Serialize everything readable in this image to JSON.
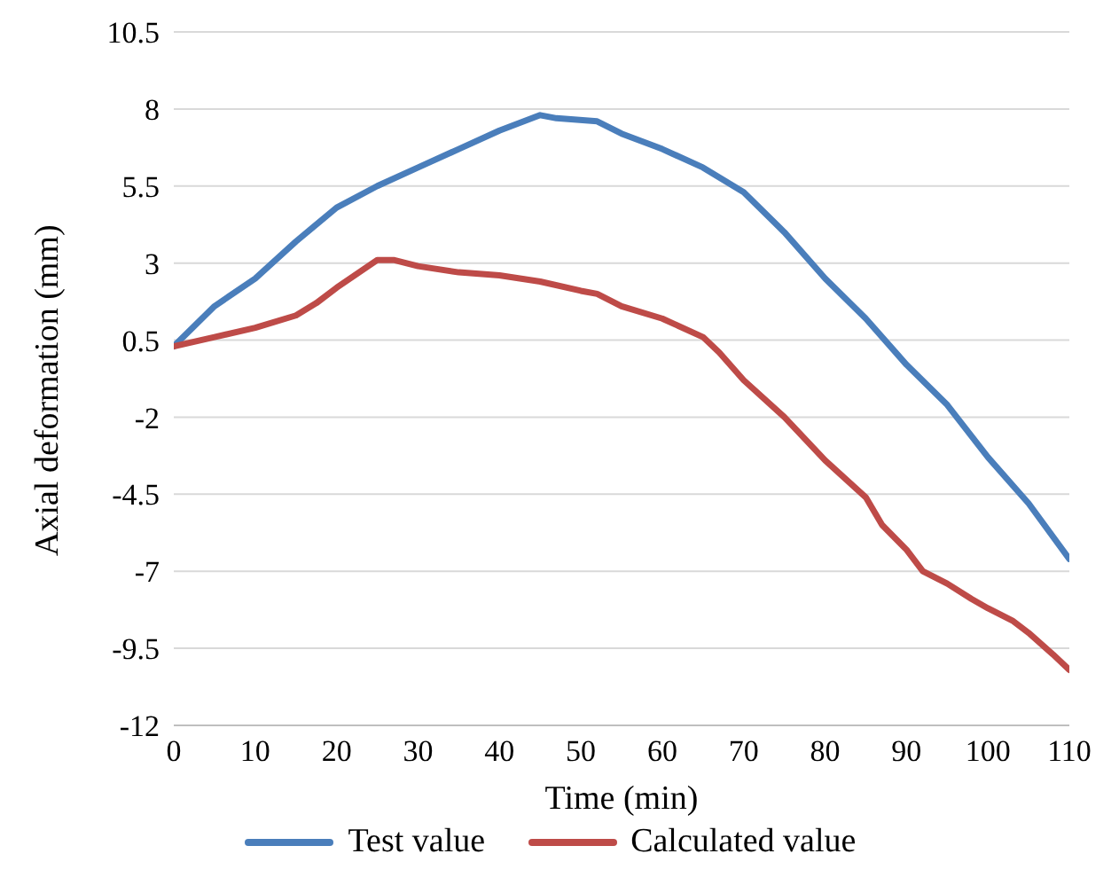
{
  "chart_data": {
    "type": "line",
    "xlabel": "Time (min)",
    "ylabel": "Axial deformation (mm)",
    "xlim": [
      0,
      110
    ],
    "xticks": [
      0,
      10,
      20,
      30,
      40,
      50,
      60,
      70,
      80,
      90,
      100,
      110
    ],
    "ylim": [
      -12,
      10.5
    ],
    "yticks": [
      -12,
      -9.5,
      -7,
      -4.5,
      -2,
      0.5,
      3,
      5.5,
      8,
      10.5
    ],
    "grid": "y",
    "legend": "bottom",
    "marker": "none",
    "line_style": "solid",
    "series": [
      {
        "name": "Test value",
        "color": "#4a7ebb",
        "x": [
          0,
          5,
          10,
          15,
          20,
          25,
          30,
          35,
          40,
          45,
          47,
          52,
          55,
          60,
          65,
          70,
          75,
          80,
          85,
          90,
          95,
          100,
          105,
          110
        ],
        "values": [
          0.3,
          1.6,
          2.5,
          3.7,
          4.8,
          5.5,
          6.1,
          6.7,
          7.3,
          7.8,
          7.7,
          7.6,
          7.2,
          6.7,
          6.1,
          5.3,
          4.0,
          2.5,
          1.2,
          -0.3,
          -1.6,
          -3.3,
          -4.8,
          -6.6
        ]
      },
      {
        "name": "Calculated value",
        "color": "#be4b48",
        "x": [
          0,
          5,
          10,
          15,
          17.5,
          20,
          25,
          27,
          30,
          35,
          40,
          45,
          50,
          52,
          55,
          60,
          65,
          67,
          70,
          75,
          80,
          85,
          87,
          90,
          92,
          95,
          98,
          100,
          103,
          105,
          108,
          110
        ],
        "values": [
          0.3,
          0.6,
          0.9,
          1.3,
          1.7,
          2.2,
          3.1,
          3.1,
          2.9,
          2.7,
          2.6,
          2.4,
          2.1,
          2.0,
          1.6,
          1.2,
          0.6,
          0.1,
          -0.8,
          -2.0,
          -3.4,
          -4.6,
          -5.5,
          -6.3,
          -7.0,
          -7.4,
          -7.9,
          -8.2,
          -8.6,
          -9.0,
          -9.7,
          -10.2
        ]
      }
    ]
  }
}
